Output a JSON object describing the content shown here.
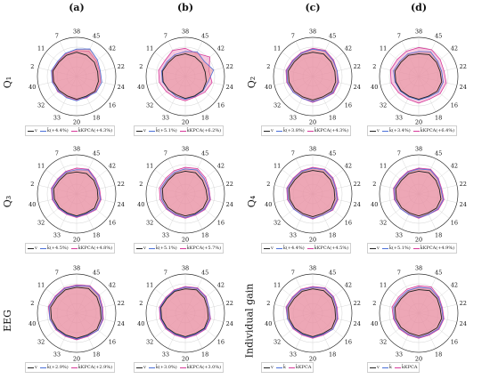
{
  "columns": [
    "(a)",
    "(b)",
    "(c)",
    "(d)"
  ],
  "rows": [
    "Q₁",
    "Q₃",
    "EEG",
    "Q₂",
    "Q₄",
    "Individual gain"
  ],
  "colors": {
    "v": "#222222",
    "k": "#4a6fd8",
    "kpca": "#d63a9a",
    "k_fill": "#e58a94",
    "kpca_fill": "#f0a0c8"
  },
  "chart_data": {
    "type": "radar",
    "axis_labels": [
      "38",
      "45",
      "42",
      "22",
      "24",
      "16",
      "18",
      "20",
      "33",
      "32",
      "40",
      "2",
      "11",
      "7"
    ],
    "panels": [
      {
        "id": "a1",
        "legend": [
          "v",
          "k̂(+4.4%)",
          "k̂KPCA(+4.3%)"
        ],
        "series": [
          {
            "key": "v",
            "values": [
              0.62,
              0.6,
              0.58,
              0.55,
              0.57,
              0.6,
              0.56,
              0.58,
              0.55,
              0.57,
              0.6,
              0.62,
              0.58,
              0.6
            ]
          },
          {
            "key": "k",
            "values": [
              0.7,
              0.78,
              0.68,
              0.62,
              0.66,
              0.64,
              0.58,
              0.62,
              0.6,
              0.6,
              0.64,
              0.66,
              0.62,
              0.66
            ]
          },
          {
            "key": "kpca",
            "values": [
              0.66,
              0.72,
              0.64,
              0.6,
              0.62,
              0.62,
              0.6,
              0.6,
              0.58,
              0.62,
              0.62,
              0.64,
              0.6,
              0.64
            ]
          }
        ]
      },
      {
        "id": "b1",
        "legend": [
          "v",
          "k̂(+5.1%)",
          "k̂KPCA(+6.2%)"
        ],
        "series": [
          {
            "key": "v",
            "values": [
              0.58,
              0.56,
              0.54,
              0.52,
              0.55,
              0.57,
              0.55,
              0.56,
              0.52,
              0.55,
              0.58,
              0.6,
              0.56,
              0.58
            ]
          },
          {
            "key": "k",
            "values": [
              0.64,
              0.7,
              0.62,
              0.74,
              0.6,
              0.58,
              0.56,
              0.58,
              0.56,
              0.54,
              0.6,
              0.62,
              0.6,
              0.62
            ]
          },
          {
            "key": "kpca",
            "values": [
              0.72,
              0.66,
              0.8,
              0.62,
              0.7,
              0.64,
              0.58,
              0.62,
              0.6,
              0.62,
              0.68,
              0.7,
              0.66,
              0.74
            ]
          }
        ]
      },
      {
        "id": "c1",
        "legend": [
          "v",
          "k̂(+3.8%)",
          "k̂KPCA(+4.3%)"
        ],
        "series": [
          {
            "key": "v",
            "values": [
              0.62,
              0.64,
              0.6,
              0.58,
              0.6,
              0.62,
              0.58,
              0.6,
              0.58,
              0.6,
              0.62,
              0.64,
              0.6,
              0.62
            ]
          },
          {
            "key": "k",
            "values": [
              0.7,
              0.72,
              0.66,
              0.64,
              0.66,
              0.66,
              0.62,
              0.64,
              0.62,
              0.64,
              0.66,
              0.68,
              0.64,
              0.66
            ]
          },
          {
            "key": "kpca",
            "values": [
              0.72,
              0.74,
              0.68,
              0.64,
              0.68,
              0.68,
              0.62,
              0.66,
              0.62,
              0.64,
              0.68,
              0.7,
              0.66,
              0.68
            ]
          }
        ]
      },
      {
        "id": "d1",
        "legend": [
          "v",
          "k̂(+3.4%)",
          "k̂KPCA(+6.4%)"
        ],
        "series": [
          {
            "key": "v",
            "values": [
              0.58,
              0.62,
              0.58,
              0.56,
              0.6,
              0.6,
              0.56,
              0.58,
              0.56,
              0.58,
              0.6,
              0.62,
              0.58,
              0.6
            ]
          },
          {
            "key": "k",
            "values": [
              0.64,
              0.7,
              0.62,
              0.6,
              0.64,
              0.64,
              0.58,
              0.6,
              0.58,
              0.6,
              0.62,
              0.66,
              0.62,
              0.64
            ]
          },
          {
            "key": "kpca",
            "values": [
              0.74,
              0.76,
              0.7,
              0.66,
              0.72,
              0.7,
              0.64,
              0.68,
              0.64,
              0.66,
              0.72,
              0.74,
              0.7,
              0.72
            ]
          }
        ]
      },
      {
        "id": "a2",
        "legend": [
          "v",
          "k̂(+4.5%)",
          "k̂KPCA(+4.8%)"
        ],
        "series": [
          {
            "key": "v",
            "values": [
              0.56,
              0.58,
              0.56,
              0.54,
              0.56,
              0.58,
              0.54,
              0.56,
              0.54,
              0.56,
              0.58,
              0.6,
              0.56,
              0.58
            ]
          },
          {
            "key": "k",
            "values": [
              0.62,
              0.68,
              0.6,
              0.58,
              0.62,
              0.62,
              0.56,
              0.58,
              0.56,
              0.58,
              0.62,
              0.64,
              0.6,
              0.62
            ]
          },
          {
            "key": "kpca",
            "values": [
              0.66,
              0.7,
              0.62,
              0.6,
              0.64,
              0.64,
              0.58,
              0.6,
              0.58,
              0.6,
              0.64,
              0.66,
              0.62,
              0.64
            ]
          }
        ]
      },
      {
        "id": "b2",
        "legend": [
          "v",
          "k̂(+5.1%)",
          "k̂KPCA(+5.7%)"
        ],
        "series": [
          {
            "key": "v",
            "values": [
              0.58,
              0.6,
              0.56,
              0.54,
              0.58,
              0.58,
              0.56,
              0.56,
              0.54,
              0.56,
              0.58,
              0.6,
              0.56,
              0.58
            ]
          },
          {
            "key": "k",
            "values": [
              0.64,
              0.68,
              0.62,
              0.6,
              0.64,
              0.62,
              0.58,
              0.6,
              0.58,
              0.6,
              0.62,
              0.64,
              0.6,
              0.62
            ]
          },
          {
            "key": "kpca",
            "values": [
              0.68,
              0.72,
              0.66,
              0.62,
              0.66,
              0.64,
              0.6,
              0.62,
              0.6,
              0.62,
              0.66,
              0.68,
              0.64,
              0.66
            ]
          }
        ]
      },
      {
        "id": "c2",
        "legend": [
          "v",
          "k̂(+4.4%)",
          "k̂KPCA(+4.5%)"
        ],
        "series": [
          {
            "key": "v",
            "values": [
              0.6,
              0.62,
              0.58,
              0.56,
              0.58,
              0.6,
              0.56,
              0.58,
              0.56,
              0.58,
              0.6,
              0.62,
              0.58,
              0.6
            ]
          },
          {
            "key": "k",
            "values": [
              0.66,
              0.68,
              0.64,
              0.6,
              0.64,
              0.64,
              0.6,
              0.62,
              0.6,
              0.62,
              0.64,
              0.66,
              0.62,
              0.64
            ]
          },
          {
            "key": "kpca",
            "values": [
              0.68,
              0.7,
              0.66,
              0.62,
              0.66,
              0.66,
              0.6,
              0.64,
              0.6,
              0.62,
              0.66,
              0.68,
              0.64,
              0.66
            ]
          }
        ]
      },
      {
        "id": "d2",
        "legend": [
          "v",
          "k̂(+5.1%)",
          "k̂KPCA(+4.9%)"
        ],
        "series": [
          {
            "key": "v",
            "values": [
              0.58,
              0.6,
              0.56,
              0.54,
              0.58,
              0.58,
              0.54,
              0.56,
              0.54,
              0.56,
              0.58,
              0.6,
              0.56,
              0.58
            ]
          },
          {
            "key": "k",
            "values": [
              0.64,
              0.68,
              0.62,
              0.58,
              0.64,
              0.62,
              0.58,
              0.6,
              0.58,
              0.6,
              0.62,
              0.64,
              0.6,
              0.62
            ]
          },
          {
            "key": "kpca",
            "values": [
              0.66,
              0.7,
              0.64,
              0.6,
              0.66,
              0.64,
              0.58,
              0.62,
              0.58,
              0.6,
              0.64,
              0.66,
              0.62,
              0.64
            ]
          }
        ]
      },
      {
        "id": "a3",
        "legend": [
          "v",
          "k̂(+2.9%)",
          "k̂KPCA(+2.9%)"
        ],
        "series": [
          {
            "key": "v",
            "values": [
              0.66,
              0.7,
              0.66,
              0.62,
              0.64,
              0.66,
              0.62,
              0.64,
              0.62,
              0.64,
              0.66,
              0.68,
              0.64,
              0.66
            ]
          },
          {
            "key": "k",
            "values": [
              0.7,
              0.76,
              0.72,
              0.66,
              0.68,
              0.7,
              0.64,
              0.66,
              0.64,
              0.66,
              0.7,
              0.72,
              0.68,
              0.7
            ]
          },
          {
            "key": "kpca",
            "values": [
              0.72,
              0.78,
              0.74,
              0.68,
              0.7,
              0.7,
              0.66,
              0.68,
              0.66,
              0.68,
              0.7,
              0.74,
              0.7,
              0.72
            ]
          }
        ]
      },
      {
        "id": "b3",
        "legend": [
          "v",
          "k̂(+3.0%)",
          "k̂KPCA(+3.0%)"
        ],
        "series": [
          {
            "key": "v",
            "values": [
              0.62,
              0.66,
              0.62,
              0.58,
              0.6,
              0.62,
              0.58,
              0.6,
              0.58,
              0.6,
              0.62,
              0.64,
              0.6,
              0.62
            ]
          },
          {
            "key": "k",
            "values": [
              0.66,
              0.7,
              0.66,
              0.62,
              0.64,
              0.64,
              0.6,
              0.62,
              0.6,
              0.62,
              0.64,
              0.66,
              0.62,
              0.64
            ]
          },
          {
            "key": "kpca",
            "values": [
              0.68,
              0.72,
              0.68,
              0.62,
              0.66,
              0.66,
              0.62,
              0.64,
              0.62,
              0.64,
              0.66,
              0.68,
              0.64,
              0.66
            ]
          }
        ]
      },
      {
        "id": "c3",
        "legend": [
          "v",
          "k̂",
          "k̂KPCA"
        ],
        "series": [
          {
            "key": "v",
            "values": [
              0.62,
              0.64,
              0.62,
              0.58,
              0.6,
              0.62,
              0.58,
              0.6,
              0.58,
              0.6,
              0.62,
              0.64,
              0.6,
              0.62
            ]
          },
          {
            "key": "k",
            "values": [
              0.66,
              0.7,
              0.66,
              0.62,
              0.64,
              0.66,
              0.6,
              0.62,
              0.6,
              0.62,
              0.66,
              0.68,
              0.64,
              0.66
            ]
          },
          {
            "key": "kpca",
            "values": [
              0.68,
              0.72,
              0.68,
              0.64,
              0.66,
              0.66,
              0.62,
              0.64,
              0.62,
              0.64,
              0.66,
              0.7,
              0.66,
              0.68
            ]
          }
        ]
      },
      {
        "id": "d3",
        "legend": [
          "v",
          "k̂",
          "k̂KPCA"
        ],
        "series": [
          {
            "key": "v",
            "values": [
              0.6,
              0.64,
              0.6,
              0.56,
              0.6,
              0.6,
              0.56,
              0.58,
              0.56,
              0.58,
              0.6,
              0.62,
              0.58,
              0.6
            ]
          },
          {
            "key": "k",
            "values": [
              0.66,
              0.7,
              0.64,
              0.6,
              0.64,
              0.64,
              0.6,
              0.62,
              0.6,
              0.62,
              0.64,
              0.66,
              0.62,
              0.64
            ]
          },
          {
            "key": "kpca",
            "values": [
              0.7,
              0.74,
              0.66,
              0.62,
              0.66,
              0.66,
              0.62,
              0.64,
              0.62,
              0.64,
              0.66,
              0.7,
              0.66,
              0.68
            ]
          }
        ]
      }
    ]
  }
}
